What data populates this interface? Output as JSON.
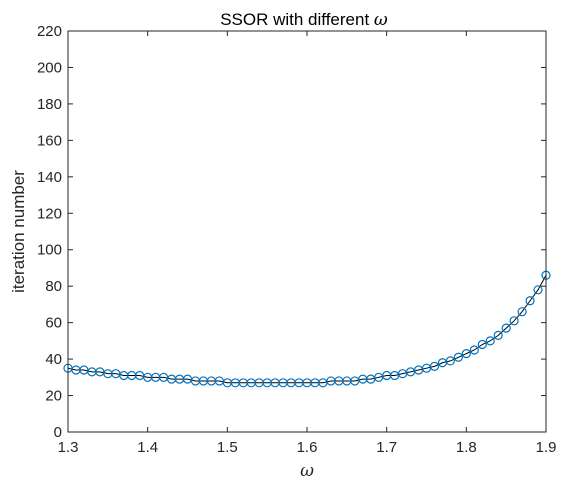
{
  "chart_data": {
    "type": "line",
    "title": "SSOR with different ",
    "title_symbol": "ω",
    "xlabel": "ω",
    "ylabel": "iteration number",
    "xlim": [
      1.3,
      1.9
    ],
    "ylim": [
      0,
      220
    ],
    "xticks": [
      "1.3",
      "1.4",
      "1.5",
      "1.6",
      "1.7",
      "1.8",
      "1.9"
    ],
    "yticks": [
      "0",
      "20",
      "40",
      "60",
      "80",
      "100",
      "120",
      "140",
      "160",
      "180",
      "200",
      "220"
    ],
    "grid": false,
    "marker": "circle",
    "line_color": "#000000",
    "marker_color": "#0072BD",
    "series": [
      {
        "x": [
          1.3,
          1.31,
          1.32,
          1.33,
          1.34,
          1.35,
          1.36,
          1.37,
          1.38,
          1.39,
          1.4,
          1.41,
          1.42,
          1.43,
          1.44,
          1.45,
          1.46,
          1.47,
          1.48,
          1.49,
          1.5,
          1.51,
          1.52,
          1.53,
          1.54,
          1.55,
          1.56,
          1.57,
          1.58,
          1.59,
          1.6,
          1.61,
          1.62,
          1.63,
          1.64,
          1.65,
          1.66,
          1.67,
          1.68,
          1.69,
          1.7,
          1.71,
          1.72,
          1.73,
          1.74,
          1.75,
          1.76,
          1.77,
          1.78,
          1.79,
          1.8,
          1.81,
          1.82,
          1.83,
          1.84,
          1.85,
          1.86,
          1.87,
          1.88,
          1.89,
          1.9
        ],
        "values": [
          35,
          34,
          34,
          33,
          33,
          32,
          32,
          31,
          31,
          31,
          30,
          30,
          30,
          29,
          29,
          29,
          28,
          28,
          28,
          28,
          27,
          27,
          27,
          27,
          27,
          27,
          27,
          27,
          27,
          27,
          27,
          27,
          27,
          28,
          28,
          28,
          28,
          29,
          29,
          30,
          31,
          31,
          32,
          33,
          34,
          35,
          36,
          38,
          39,
          41,
          43,
          45,
          48,
          50,
          53,
          57,
          61,
          66,
          72,
          78,
          86
        ]
      }
    ]
  }
}
